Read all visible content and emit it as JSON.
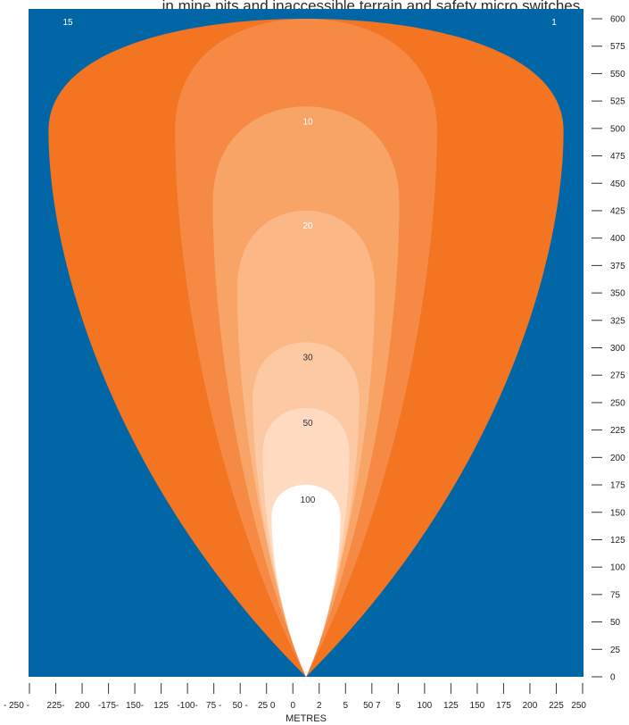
{
  "caption": "in mine pits and inaccessible terrain and safety micro switches.",
  "chart_data": {
    "type": "area",
    "title": "",
    "xlabel": "METRES",
    "ylabel": "",
    "xlim": [
      -250,
      250
    ],
    "ylim": [
      0,
      600
    ],
    "grid": false,
    "background_color": "#0066a6",
    "x_ticks": [
      "- 250 -",
      "225-",
      "200",
      "-175-",
      "150-",
      "125",
      "-100-",
      "75 -",
      "50 -",
      "25 0",
      "0",
      "2",
      "5",
      "50 7",
      "5",
      "100",
      "125",
      "150",
      "175",
      "200",
      "225",
      "250"
    ],
    "y_ticks": [
      "0",
      "25",
      "50",
      "75",
      "100",
      "125",
      "150",
      "175",
      "200",
      "225",
      "250",
      "275",
      "300",
      "325",
      "350",
      "375",
      "400",
      "425",
      "450",
      "475",
      "500",
      "525",
      "550",
      "575",
      "600"
    ],
    "contours": [
      {
        "label": "15",
        "label_right": "1",
        "max_range_m": 600,
        "half_width_m": 232,
        "color": "#f37421",
        "label_color": "#ffffff"
      },
      {
        "label": "",
        "max_range_m": 600,
        "half_width_m": 118,
        "color": "#f68a45",
        "label_color": "#ffffff"
      },
      {
        "label": "10",
        "max_range_m": 520,
        "half_width_m": 84,
        "color": "#f8a467",
        "label_color": "#ffffff"
      },
      {
        "label": "20",
        "max_range_m": 425,
        "half_width_m": 62,
        "color": "#fab887",
        "label_color": "#ffffff"
      },
      {
        "label": "30",
        "max_range_m": 305,
        "half_width_m": 48,
        "color": "#fcc9a2",
        "label_color": "#333333"
      },
      {
        "label": "50",
        "max_range_m": 245,
        "half_width_m": 39,
        "color": "#fedbc0",
        "label_color": "#333333"
      },
      {
        "label": "100",
        "max_range_m": 175,
        "half_width_m": 31,
        "color": "#ffffff",
        "label_color": "#333333"
      }
    ]
  }
}
